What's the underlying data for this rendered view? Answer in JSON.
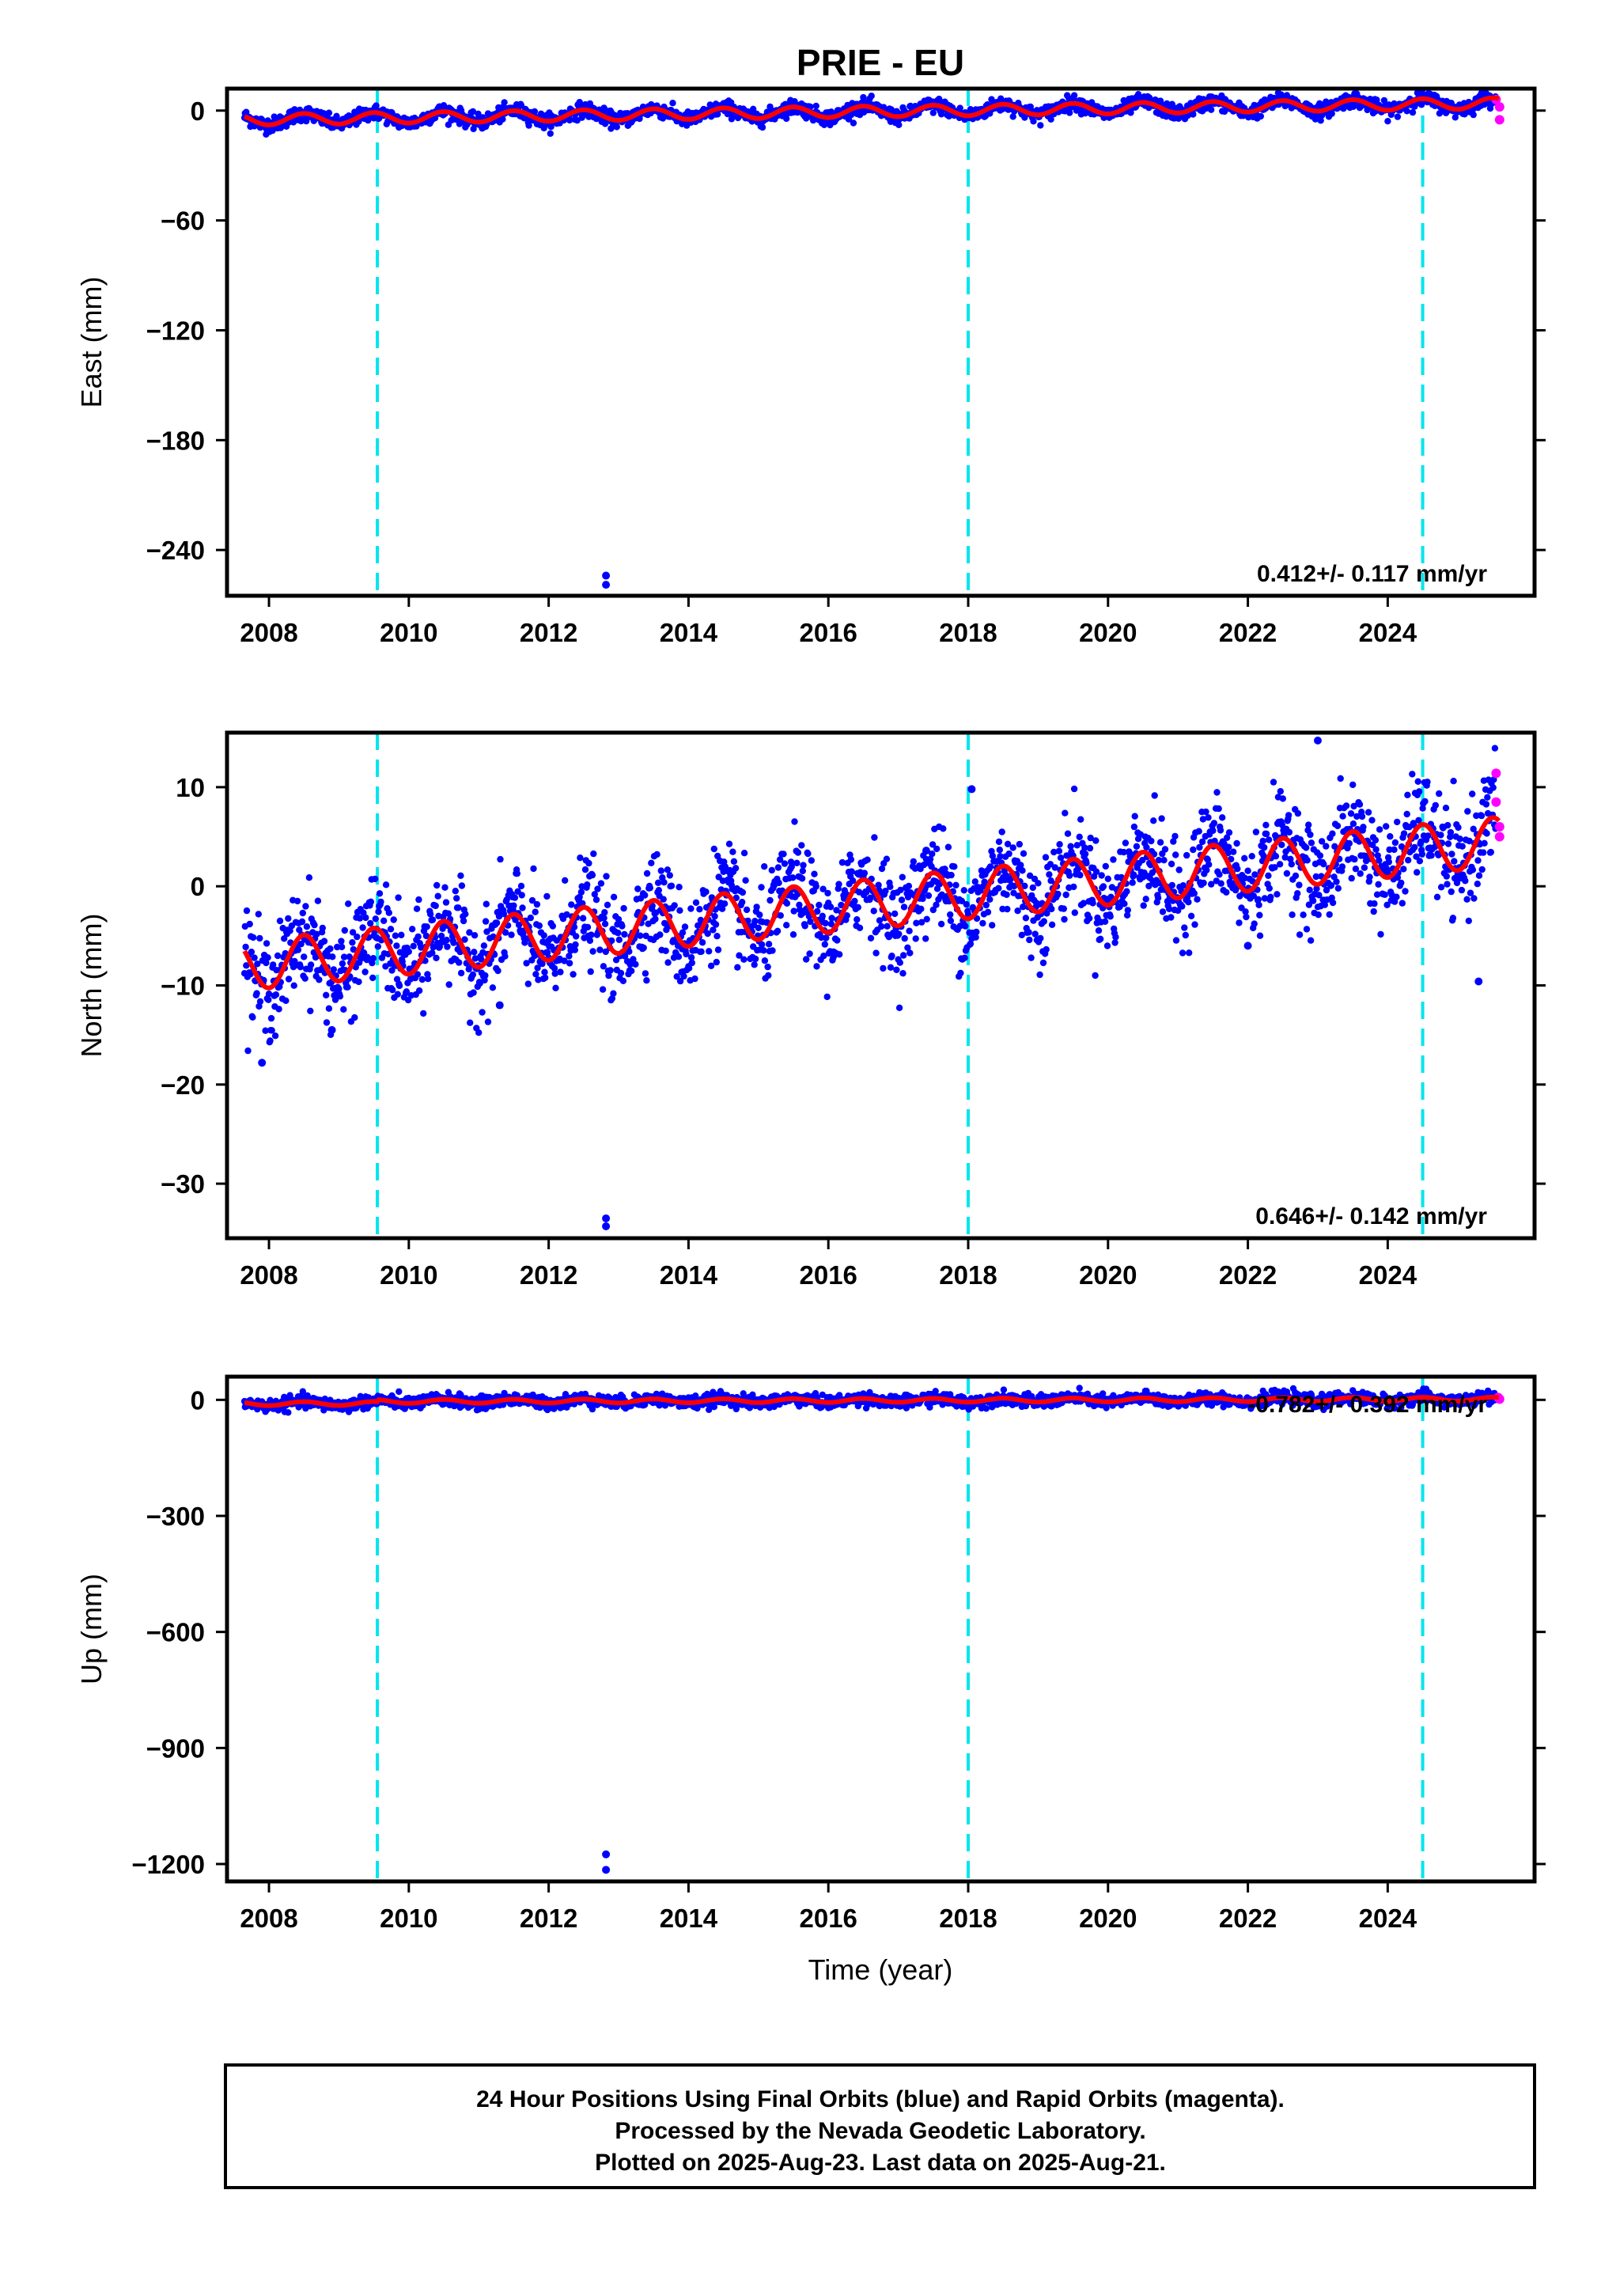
{
  "chart_data": {
    "title": "PRIE - EU",
    "type": "scatter",
    "xlabel": "Time (year)",
    "x_range": [
      2007.4,
      2026.1
    ],
    "x_ticks": [
      2008,
      2010,
      2012,
      2014,
      2016,
      2018,
      2020,
      2022,
      2024
    ],
    "vertical_lines_year": [
      2009.55,
      2018.0,
      2024.5
    ],
    "colors": {
      "final_orbits": "#0000ff",
      "rapid_orbits": "#ff00ff",
      "model": "#ff0000",
      "vertical_lines": "#00e5ee"
    },
    "panels": [
      {
        "key": "east",
        "ylabel": "East (mm)",
        "ylim": [
          -265,
          12
        ],
        "y_ticks": [
          0,
          -60,
          -120,
          -180,
          -240
        ],
        "rate_text": "0.412+/- 0.117 mm/yr",
        "trend": {
          "start_year": 2007.65,
          "end_year": 2025.6,
          "start_value": -5,
          "end_value": 4
        },
        "seasonal_amplitude": 3,
        "scatter_spread": 2,
        "outliers": [
          {
            "year": 2012.82,
            "value": -254
          },
          {
            "year": 2012.82,
            "value": -259
          }
        ],
        "rapid_points": [
          {
            "year": 2025.55,
            "value": 6
          },
          {
            "year": 2025.6,
            "value": 2
          },
          {
            "year": 2025.6,
            "value": -5
          }
        ]
      },
      {
        "key": "north",
        "ylabel": "North (mm)",
        "ylim": [
          -35.5,
          15.5
        ],
        "y_ticks": [
          10,
          0,
          -10,
          -20,
          -30
        ],
        "rate_text": "0.646+/- 0.142 mm/yr",
        "trend": {
          "start_year": 2007.65,
          "end_year": 2025.6,
          "start_value": -8,
          "end_value": 4.5
        },
        "seasonal_amplitude": 2.5,
        "scatter_spread": 2.5,
        "outliers": [
          {
            "year": 2012.82,
            "value": -33.5
          },
          {
            "year": 2012.82,
            "value": -34.3
          },
          {
            "year": 2007.9,
            "value": -17.8
          },
          {
            "year": 2008.9,
            "value": -14.5
          },
          {
            "year": 2023.0,
            "value": 14.7
          },
          {
            "year": 2017.4,
            "value": 3.6
          },
          {
            "year": 2018.05,
            "value": 9.8
          },
          {
            "year": 2025.3,
            "value": -9.6
          },
          {
            "year": 2022.0,
            "value": -6.0
          },
          {
            "year": 2011.3,
            "value": -12.0
          }
        ],
        "rapid_points": [
          {
            "year": 2025.55,
            "value": 11.4
          },
          {
            "year": 2025.55,
            "value": 8.5
          },
          {
            "year": 2025.6,
            "value": 6.0
          },
          {
            "year": 2025.6,
            "value": 5.0
          }
        ]
      },
      {
        "key": "up",
        "ylabel": "Up (mm)",
        "ylim": [
          -1245,
          60
        ],
        "y_ticks": [
          0,
          -300,
          -600,
          -900,
          -1200
        ],
        "rate_text": "-0.782+/- 0.392 mm/yr",
        "trend": {
          "start_year": 2007.65,
          "end_year": 2025.6,
          "start_value": -5,
          "end_value": 2
        },
        "seasonal_amplitude": 5,
        "scatter_spread": 8,
        "offset": {
          "year": 2009.55,
          "before": -10,
          "after": 8
        },
        "outliers": [
          {
            "year": 2012.82,
            "value": -1175
          },
          {
            "year": 2012.82,
            "value": -1215
          }
        ],
        "rapid_points": [
          {
            "year": 2025.58,
            "value": 6
          },
          {
            "year": 2025.6,
            "value": 2
          }
        ]
      }
    ]
  },
  "caption": {
    "line1": "24 Hour Positions Using Final Orbits (blue) and Rapid Orbits (magenta).",
    "line2": "Processed by the Nevada Geodetic Laboratory.",
    "line3": "Plotted on 2025-Aug-23. Last data on 2025-Aug-21."
  }
}
